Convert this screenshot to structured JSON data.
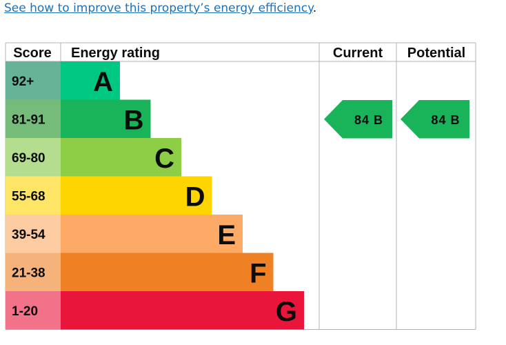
{
  "link": {
    "text": "See how to improve this property’s energy efficiency",
    "suffix": "."
  },
  "chart_data": {
    "type": "table",
    "columns": [
      "Score",
      "Energy rating",
      "Current",
      "Potential"
    ],
    "bands": [
      {
        "score": "92+",
        "letter": "A",
        "color": "#008054",
        "score_bg": "#66b398",
        "bar": "#00c781"
      },
      {
        "score": "81-91",
        "letter": "B",
        "color": "#19b459",
        "score_bg": "#75bc7b",
        "bar": "#19b459"
      },
      {
        "score": "69-80",
        "letter": "C",
        "color": "#8dce46",
        "score_bg": "#b4dd8d",
        "bar": "#8dce46"
      },
      {
        "score": "55-68",
        "letter": "D",
        "color": "#ffd500",
        "score_bg": "#ffe566",
        "bar": "#ffd500"
      },
      {
        "score": "39-54",
        "letter": "E",
        "color": "#fcaa65",
        "score_bg": "#fdcca3",
        "bar": "#fcaa65"
      },
      {
        "score": "21-38",
        "letter": "F",
        "color": "#ef8023",
        "score_bg": "#f5b37b",
        "bar": "#ef8023"
      },
      {
        "score": "1-20",
        "letter": "G",
        "color": "#e9153b",
        "score_bg": "#f27389",
        "bar": "#e9153b"
      }
    ],
    "current": {
      "value": 84,
      "band": "B",
      "label": "84 B",
      "color": "#19b459"
    },
    "potential": {
      "value": 84,
      "band": "B",
      "label": "84 B",
      "color": "#19b459"
    }
  }
}
